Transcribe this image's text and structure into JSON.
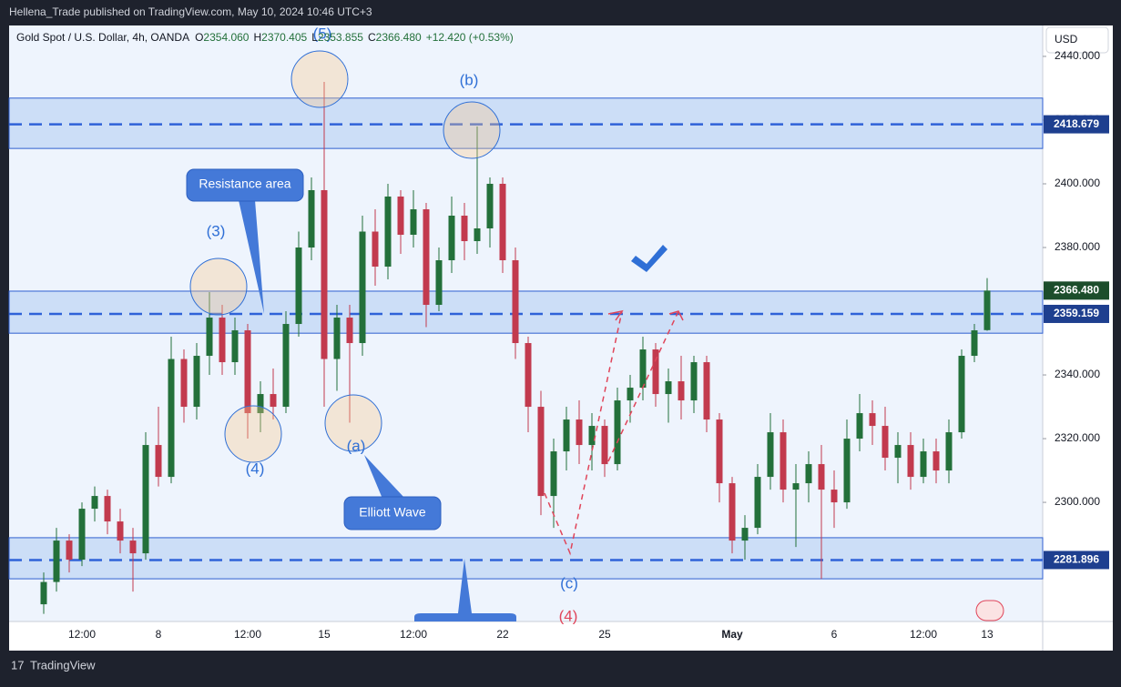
{
  "header": "Hellena_Trade published on TradingView.com, May 10, 2024 10:46 UTC+3",
  "footer": "TradingView",
  "chart_data": {
    "type": "candlestick",
    "title": "Gold Spot / U.S. Dollar, 4h, OANDA",
    "ohlc_legend": [
      [
        "O",
        "2354.060"
      ],
      [
        "H",
        "2370.405"
      ],
      [
        "L",
        "2353.855"
      ],
      [
        "C",
        "2366.480"
      ]
    ],
    "change": "+12.420 (+0.53%)",
    "currency": "USD",
    "up_color": "#23703a",
    "down_color": "#c23a4e",
    "ylim": [
      2262.6,
      2449.7
    ],
    "yticks": [
      {
        "value": 2300,
        "label": "2300.000"
      },
      {
        "value": 2320,
        "label": "2320.000"
      },
      {
        "value": 2340,
        "label": "2340.000"
      },
      {
        "value": 2360,
        "label": "2360.000"
      },
      {
        "value": 2380,
        "label": "2380.000"
      },
      {
        "value": 2400,
        "label": "2400.000"
      },
      {
        "value": 2420,
        "label": "2420.000"
      },
      {
        "value": 2440,
        "label": "2440.000"
      }
    ],
    "categories": [
      null,
      null,
      null,
      "12:00",
      null,
      null,
      null,
      null,
      null,
      "8",
      null,
      null,
      null,
      null,
      null,
      null,
      "12:00",
      null,
      null,
      null,
      null,
      null,
      "15",
      null,
      null,
      null,
      null,
      null,
      null,
      "12:00",
      null,
      null,
      null,
      null,
      null,
      null,
      "22",
      null,
      null,
      null,
      null,
      null,
      null,
      null,
      "25",
      null,
      null,
      null,
      null,
      null,
      null,
      null,
      null,
      null,
      "May",
      null,
      null,
      null,
      null,
      null,
      null,
      null,
      "6",
      null,
      null,
      null,
      null,
      null,
      null,
      "12:00",
      null,
      null,
      null,
      null,
      "13"
    ],
    "candles": [
      [
        2268,
        2278,
        2265,
        2275
      ],
      [
        2275,
        2292,
        2272,
        2288
      ],
      [
        2288,
        2290,
        2278,
        2282
      ],
      [
        2282,
        2300,
        2280,
        2298
      ],
      [
        2298,
        2305,
        2294,
        2302
      ],
      [
        2302,
        2304,
        2290,
        2294
      ],
      [
        2294,
        2298,
        2284,
        2288
      ],
      [
        2288,
        2292,
        2272,
        2284
      ],
      [
        2284,
        2322,
        2282,
        2318
      ],
      [
        2318,
        2330,
        2305,
        2308
      ],
      [
        2308,
        2352,
        2306,
        2345
      ],
      [
        2345,
        2348,
        2325,
        2330
      ],
      [
        2330,
        2350,
        2326,
        2346
      ],
      [
        2346,
        2366,
        2340,
        2358
      ],
      [
        2358,
        2362,
        2340,
        2344
      ],
      [
        2344,
        2358,
        2340,
        2354
      ],
      [
        2354,
        2356,
        2320,
        2328
      ],
      [
        2328,
        2338,
        2322,
        2334
      ],
      [
        2334,
        2342,
        2326,
        2330
      ],
      [
        2330,
        2360,
        2328,
        2356
      ],
      [
        2356,
        2385,
        2352,
        2380
      ],
      [
        2380,
        2402,
        2376,
        2398
      ],
      [
        2398,
        2432,
        2330,
        2345
      ],
      [
        2345,
        2362,
        2335,
        2358
      ],
      [
        2358,
        2362,
        2325,
        2350
      ],
      [
        2350,
        2390,
        2346,
        2385
      ],
      [
        2385,
        2392,
        2368,
        2374
      ],
      [
        2374,
        2400,
        2370,
        2396
      ],
      [
        2396,
        2398,
        2378,
        2384
      ],
      [
        2384,
        2398,
        2380,
        2392
      ],
      [
        2392,
        2394,
        2355,
        2362
      ],
      [
        2362,
        2380,
        2360,
        2376
      ],
      [
        2376,
        2396,
        2372,
        2390
      ],
      [
        2390,
        2394,
        2376,
        2382
      ],
      [
        2382,
        2418,
        2378,
        2386
      ],
      [
        2386,
        2402,
        2380,
        2400
      ],
      [
        2400,
        2402,
        2372,
        2376
      ],
      [
        2376,
        2380,
        2345,
        2350
      ],
      [
        2350,
        2352,
        2322,
        2330
      ],
      [
        2330,
        2335,
        2296,
        2302
      ],
      [
        2302,
        2320,
        2292,
        2316
      ],
      [
        2316,
        2330,
        2310,
        2326
      ],
      [
        2326,
        2332,
        2312,
        2318
      ],
      [
        2318,
        2328,
        2310,
        2324
      ],
      [
        2324,
        2326,
        2308,
        2312
      ],
      [
        2312,
        2336,
        2310,
        2332
      ],
      [
        2332,
        2340,
        2325,
        2336
      ],
      [
        2336,
        2352,
        2332,
        2348
      ],
      [
        2348,
        2350,
        2330,
        2334
      ],
      [
        2334,
        2342,
        2325,
        2338
      ],
      [
        2338,
        2346,
        2326,
        2332
      ],
      [
        2332,
        2346,
        2328,
        2344
      ],
      [
        2344,
        2346,
        2322,
        2326
      ],
      [
        2326,
        2328,
        2300,
        2306
      ],
      [
        2306,
        2308,
        2284,
        2288
      ],
      [
        2288,
        2296,
        2282,
        2292
      ],
      [
        2292,
        2312,
        2290,
        2308
      ],
      [
        2308,
        2328,
        2304,
        2322
      ],
      [
        2322,
        2326,
        2300,
        2304
      ],
      [
        2304,
        2312,
        2286,
        2306
      ],
      [
        2306,
        2316,
        2300,
        2312
      ],
      [
        2312,
        2318,
        2276,
        2304
      ],
      [
        2304,
        2310,
        2292,
        2300
      ],
      [
        2300,
        2326,
        2298,
        2320
      ],
      [
        2320,
        2334,
        2316,
        2328
      ],
      [
        2328,
        2332,
        2318,
        2324
      ],
      [
        2324,
        2330,
        2310,
        2314
      ],
      [
        2314,
        2322,
        2306,
        2318
      ],
      [
        2318,
        2322,
        2304,
        2308
      ],
      [
        2308,
        2320,
        2306,
        2316
      ],
      [
        2316,
        2320,
        2306,
        2310
      ],
      [
        2310,
        2326,
        2306,
        2322
      ],
      [
        2322,
        2348,
        2320,
        2346
      ],
      [
        2346,
        2356,
        2344,
        2354
      ],
      [
        2354.06,
        2370.405,
        2353.855,
        2366.48
      ]
    ],
    "zones": [
      {
        "level": 2418.679,
        "range": [
          2411.1,
          2426.9
        ]
      },
      {
        "level": 2359.159,
        "range": [
          2353.1,
          2366.3
        ]
      },
      {
        "level": 2281.896,
        "range": [
          2276.0,
          2288.9
        ]
      }
    ],
    "last_price": {
      "value": 2366.48,
      "label": "2366.480"
    },
    "annotations": [
      "(5)",
      "(b)",
      "(3)",
      "(4)",
      "(a)",
      "(c)",
      "(4)",
      "Resistance area",
      "Elliott Wave"
    ]
  }
}
